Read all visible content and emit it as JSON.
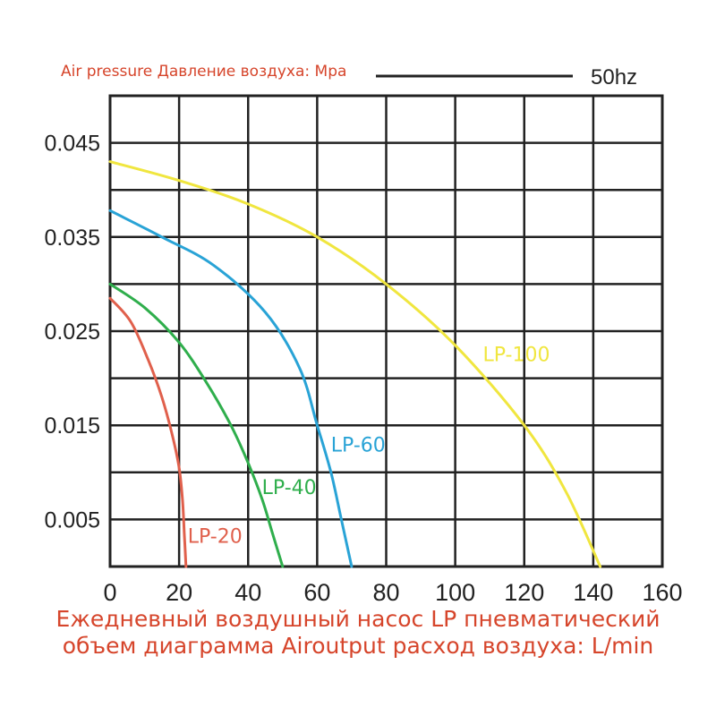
{
  "chart_data": {
    "type": "line",
    "title": "Air pressure Давление воздуха: Mpa",
    "frequency_label": "50hz",
    "x_ticks": [
      "0",
      "20",
      "40",
      "60",
      "80",
      "100",
      "120",
      "140",
      "160"
    ],
    "y_ticks": [
      "0.005",
      "0.015",
      "0.025",
      "0.035",
      "0.045"
    ],
    "xlim": [
      0,
      160
    ],
    "ylim": [
      0,
      0.05
    ],
    "grid": true,
    "xlabel_lines": [
      "Ежедневный воздушный насос LP пневматический",
      "объем диаграмма Airoutput расход воздуха: L/min"
    ],
    "series": [
      {
        "name": "LP-20",
        "color": "#e0604c",
        "x": [
          0,
          6,
          11,
          15,
          18,
          20,
          21,
          21.5,
          22
        ],
        "y": [
          0.0285,
          0.026,
          0.022,
          0.018,
          0.014,
          0.0105,
          0.007,
          0.0035,
          0.0
        ],
        "label_at": [
          22.5,
          0.0025
        ]
      },
      {
        "name": "LP-40",
        "color": "#2fae4c",
        "x": [
          0,
          10,
          20,
          28,
          35,
          40,
          44,
          47,
          50
        ],
        "y": [
          0.03,
          0.0275,
          0.0238,
          0.0195,
          0.015,
          0.011,
          0.0072,
          0.0036,
          0.0
        ],
        "label_at": [
          44,
          0.0077
        ]
      },
      {
        "name": "LP-60",
        "color": "#29a3d6",
        "x": [
          0,
          15,
          30,
          45,
          55,
          60,
          64,
          67,
          70
        ],
        "y": [
          0.0378,
          0.035,
          0.032,
          0.027,
          0.021,
          0.015,
          0.01,
          0.005,
          0.0
        ],
        "label_at": [
          64,
          0.0122
        ]
      },
      {
        "name": "LP-100",
        "color": "#f0e63f",
        "x": [
          0,
          20,
          40,
          60,
          80,
          100,
          120,
          132,
          142
        ],
        "y": [
          0.043,
          0.041,
          0.0385,
          0.035,
          0.03,
          0.0235,
          0.015,
          0.008,
          0.0
        ],
        "label_at": [
          108,
          0.0218
        ]
      }
    ]
  }
}
